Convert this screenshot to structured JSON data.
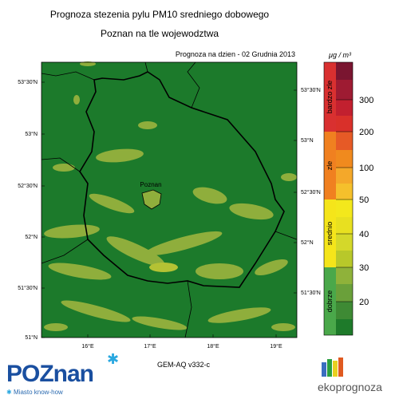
{
  "header": {
    "title": "Prognoza stezenia pylu PM10 sredniego dobowego",
    "subtitle": "Poznan na tle wojewodztwa",
    "forecast_date": "Prognoza na dzien -  02 Grudnia 2013"
  },
  "map": {
    "lat_labels_left": [
      "53°30'N",
      "53°N",
      "52°30'N",
      "52°N",
      "51°30'N",
      "51°N"
    ],
    "lat_labels_right": [
      "53°30'N",
      "53°N",
      "52°30'N",
      "52°N",
      "51°30'N"
    ],
    "lon_labels": [
      "16°E",
      "17°E",
      "18°E",
      "19°E"
    ],
    "city_label": "Poznan",
    "model": "GEM-AQ v332-c"
  },
  "legend": {
    "unit": "μg / m³",
    "categories": [
      "bardzo zle",
      "zle",
      "srednio",
      "dobrze"
    ],
    "levels": [
      "300",
      "200",
      "100",
      "50",
      "40",
      "30",
      "20"
    ]
  },
  "logos": {
    "poznan": "POZnan",
    "poznan_tagline": "Miasto know-how",
    "ekoprognoza": "ekoprognoza"
  }
}
